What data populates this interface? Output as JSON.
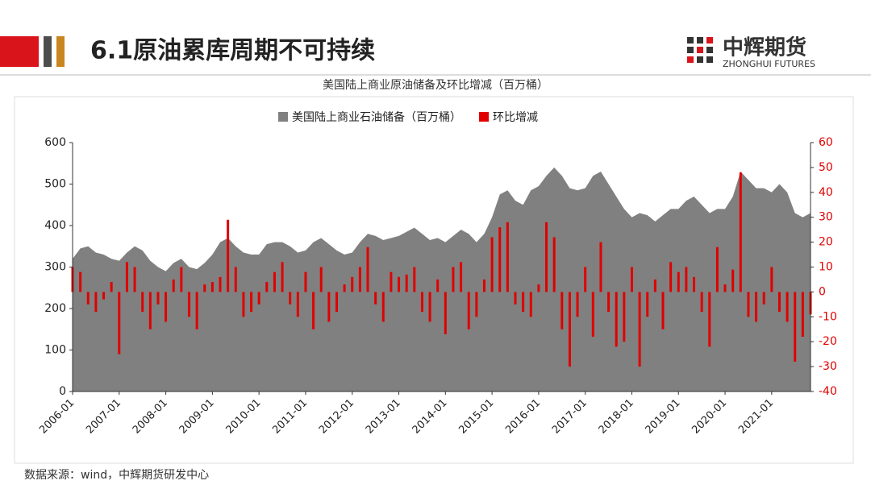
{
  "header": {
    "title": "6.1原油累库周期不可持续",
    "logo": "中辉期货",
    "logo_sub": "ZHONGHUI FUTURES"
  },
  "chart_data": {
    "type": "combo",
    "title": "美国陆上商业原油储备及环比增减（百万桶）",
    "categories": [
      "2006-01",
      null,
      null,
      null,
      null,
      null,
      "2007-01",
      null,
      null,
      null,
      null,
      null,
      "2008-01",
      null,
      null,
      null,
      null,
      null,
      "2009-01",
      null,
      null,
      null,
      null,
      null,
      "2010-01",
      null,
      null,
      null,
      null,
      null,
      "2011-01",
      null,
      null,
      null,
      null,
      null,
      "2012-01",
      null,
      null,
      null,
      null,
      null,
      "2013-01",
      null,
      null,
      null,
      null,
      null,
      "2014-01",
      null,
      null,
      null,
      null,
      null,
      "2015-01",
      null,
      null,
      null,
      null,
      null,
      "2016-01",
      null,
      null,
      null,
      null,
      null,
      "2017-01",
      null,
      null,
      null,
      null,
      null,
      "2018-01",
      null,
      null,
      null,
      null,
      null,
      "2019-01",
      null,
      null,
      null,
      null,
      null,
      "2020-01",
      null,
      null,
      null,
      null,
      null,
      "2021-01",
      null,
      null,
      null,
      null,
      null
    ],
    "series": [
      {
        "name": "美国陆上商业石油储备（百万桶）",
        "kind": "area",
        "color": "#808080",
        "values": [
          320,
          345,
          350,
          335,
          330,
          320,
          315,
          335,
          350,
          340,
          315,
          300,
          290,
          310,
          320,
          300,
          295,
          310,
          330,
          360,
          370,
          350,
          335,
          330,
          330,
          355,
          360,
          360,
          350,
          335,
          340,
          360,
          370,
          355,
          340,
          330,
          335,
          360,
          380,
          375,
          365,
          370,
          375,
          385,
          395,
          380,
          365,
          370,
          360,
          375,
          390,
          380,
          360,
          380,
          420,
          475,
          485,
          460,
          450,
          485,
          495,
          520,
          540,
          520,
          490,
          485,
          490,
          520,
          530,
          500,
          470,
          440,
          420,
          430,
          425,
          410,
          425,
          440,
          440,
          460,
          470,
          450,
          430,
          440,
          440,
          470,
          530,
          510,
          490,
          490,
          480,
          500,
          480,
          430,
          420,
          430
        ]
      },
      {
        "name": "环比增减",
        "kind": "bar",
        "axis": "y2",
        "color": "#e00000",
        "values": [
          10,
          8,
          -5,
          -8,
          -3,
          4,
          -25,
          12,
          10,
          -8,
          -15,
          -5,
          -12,
          5,
          10,
          -10,
          -15,
          3,
          4,
          6,
          29,
          10,
          -10,
          -8,
          -5,
          4,
          8,
          12,
          -5,
          -10,
          8,
          -15,
          10,
          -12,
          -8,
          3,
          6,
          10,
          18,
          -5,
          -12,
          8,
          6,
          7,
          10,
          -8,
          -12,
          5,
          -17,
          10,
          12,
          -15,
          -10,
          5,
          22,
          26,
          28,
          -5,
          -8,
          -10,
          3,
          28,
          22,
          -15,
          -30,
          -10,
          10,
          -18,
          20,
          -8,
          -22,
          -20,
          10,
          -30,
          -10,
          5,
          -15,
          12,
          8,
          10,
          6,
          -8,
          -22,
          18,
          3,
          9,
          48,
          -10,
          -12,
          -5,
          10,
          -8,
          -12,
          -28,
          -18,
          -9
        ]
      }
    ],
    "ylim": [
      0,
      600
    ],
    "yticks": [
      0,
      100,
      200,
      300,
      400,
      500,
      600
    ],
    "y2lim": [
      -40,
      60
    ],
    "y2ticks": [
      -40,
      -30,
      -20,
      -10,
      0,
      10,
      20,
      30,
      40,
      50,
      60
    ],
    "y2_color": "#e00000",
    "legend": "top",
    "grid": false
  },
  "footer": {
    "source": "数据来源：wind，中辉期货研发中心"
  }
}
